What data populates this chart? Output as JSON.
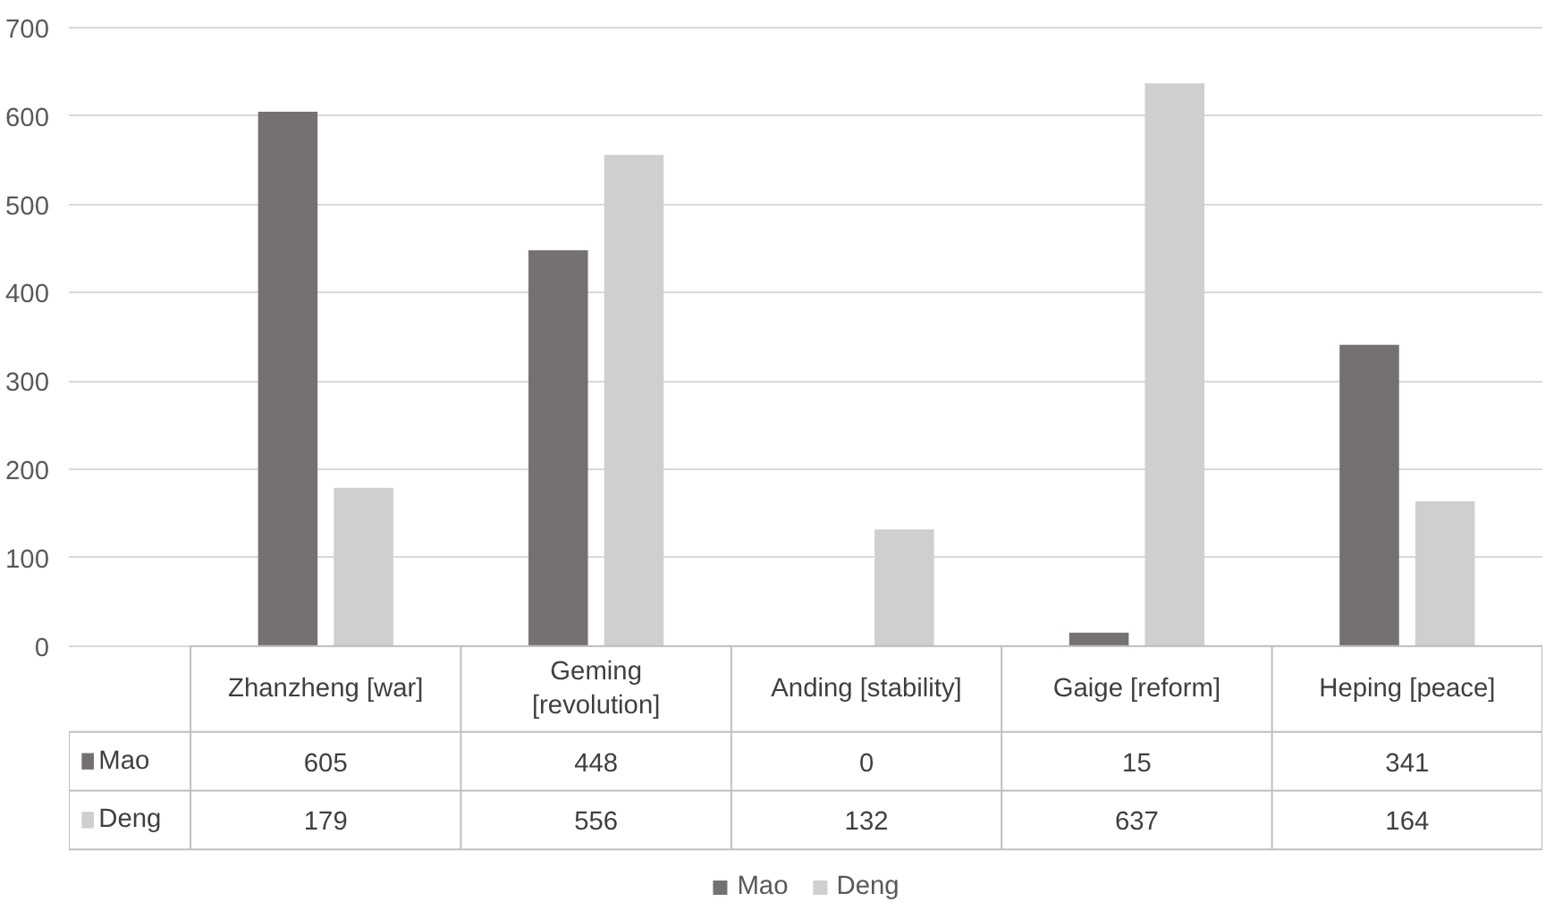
{
  "chart_data": {
    "type": "bar",
    "categories": [
      "Zhanzheng [war]",
      "Geming\n[revolution]",
      "Anding [stability]",
      "Gaige [reform]",
      "Heping [peace]"
    ],
    "series": [
      {
        "name": "Mao",
        "color": "#767171",
        "values": [
          605,
          448,
          0,
          15,
          341
        ]
      },
      {
        "name": "Deng",
        "color": "#d0cece",
        "values": [
          179,
          556,
          132,
          637,
          164
        ]
      }
    ],
    "ylim": [
      0,
      700
    ],
    "yticks": [
      0,
      100,
      200,
      300,
      400,
      500,
      600,
      700
    ],
    "grid": "y",
    "legend": "bottom",
    "data_labels": true
  }
}
